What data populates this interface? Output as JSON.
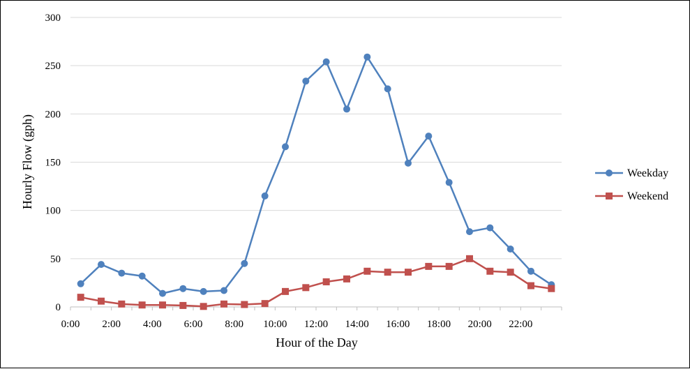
{
  "chart_data": {
    "type": "line",
    "xlabel": "Hour of the Day",
    "ylabel": "Hourly Flow (gph)",
    "ylim": [
      0,
      300
    ],
    "yticks": [
      0,
      50,
      100,
      150,
      200,
      250,
      300
    ],
    "x": [
      0,
      1,
      2,
      3,
      4,
      5,
      6,
      7,
      8,
      9,
      10,
      11,
      12,
      13,
      14,
      15,
      16,
      17,
      18,
      19,
      20,
      21,
      22,
      23
    ],
    "xtick_labels": [
      "0:00",
      "2:00",
      "4:00",
      "6:00",
      "8:00",
      "10:00",
      "12:00",
      "14:00",
      "16:00",
      "18:00",
      "20:00",
      "22:00"
    ],
    "grid": true,
    "legend": "right",
    "series": [
      {
        "name": "Weekday",
        "color": "#4F81BD",
        "marker": "circle",
        "values": [
          24,
          44,
          35,
          32,
          14,
          19,
          16,
          17,
          45,
          115,
          166,
          234,
          254,
          205,
          259,
          226,
          149,
          177,
          129,
          78,
          82,
          60,
          37,
          23
        ]
      },
      {
        "name": "Weekend",
        "color": "#C0504D",
        "marker": "square",
        "values": [
          10,
          6,
          3,
          2,
          2,
          1.5,
          0.5,
          3,
          2.5,
          3.5,
          16,
          20,
          26,
          29,
          37,
          36,
          36,
          42,
          42,
          50,
          37,
          36,
          22,
          19
        ]
      }
    ]
  }
}
